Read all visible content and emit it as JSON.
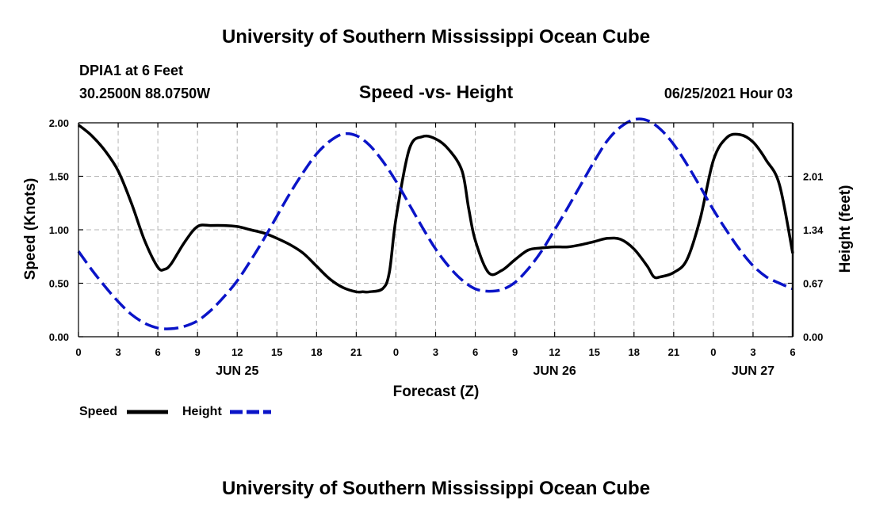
{
  "header": {
    "title_top": "University of Southern Mississippi Ocean Cube",
    "station": "DPIA1 at 6 Feet",
    "coords": "30.2500N  88.0750W",
    "datetime": "06/25/2021 Hour 03",
    "title_bottom": "University of Southern Mississippi Ocean Cube"
  },
  "legend": {
    "speed": "Speed",
    "height": "Height"
  },
  "colors": {
    "speed": "#000000",
    "height": "#0a14c8",
    "grid": "#b4b4b4"
  },
  "chart_data": {
    "type": "line",
    "title": "Speed -vs- Height",
    "xlabel": "Forecast (Z)",
    "ylabel": "Speed (Knots)",
    "y2label": "Height (feet)",
    "xlim": [
      0,
      54
    ],
    "ylim": [
      0,
      2.0
    ],
    "y2lim": [
      0,
      2.68
    ],
    "grid": true,
    "legend_position": "bottom-left",
    "x_ticks": [
      0,
      3,
      6,
      9,
      12,
      15,
      18,
      21,
      24,
      27,
      30,
      33,
      36,
      39,
      42,
      45,
      48,
      51,
      54
    ],
    "x_tick_labels": [
      "0",
      "3",
      "6",
      "9",
      "12",
      "15",
      "18",
      "21",
      "0",
      "3",
      "6",
      "9",
      "12",
      "15",
      "18",
      "21",
      "0",
      "3",
      "6"
    ],
    "y_ticks": [
      "0.00",
      "0.50",
      "1.00",
      "1.50",
      "2.00"
    ],
    "y2_ticks": [
      "0.00",
      "0.67",
      "1.34",
      "2.01"
    ],
    "date_labels": [
      {
        "label": "JUN 25",
        "x": 12
      },
      {
        "label": "JUN 26",
        "x": 36
      },
      {
        "label": "JUN 27",
        "x": 51
      }
    ],
    "series": [
      {
        "name": "Speed",
        "axis": "left",
        "x": [
          0,
          1,
          2,
          3,
          4,
          5,
          6,
          6.5,
          7,
          8,
          9,
          10,
          11,
          12,
          13,
          14,
          15,
          16,
          17,
          18,
          19,
          20,
          21,
          21.5,
          22,
          23,
          23.5,
          24,
          25,
          26,
          27,
          28,
          29,
          29.5,
          30,
          31,
          32,
          33,
          34,
          35,
          36,
          37,
          38,
          39,
          40,
          41,
          42,
          43,
          43.5,
          44,
          45,
          46,
          47,
          48,
          49,
          50,
          51,
          52,
          53,
          54
        ],
        "values": [
          1.98,
          1.88,
          1.74,
          1.55,
          1.25,
          0.9,
          0.65,
          0.63,
          0.68,
          0.88,
          1.03,
          1.04,
          1.04,
          1.03,
          1.0,
          0.97,
          0.92,
          0.86,
          0.78,
          0.66,
          0.54,
          0.46,
          0.42,
          0.42,
          0.42,
          0.45,
          0.6,
          1.1,
          1.75,
          1.87,
          1.85,
          1.75,
          1.55,
          1.2,
          0.9,
          0.6,
          0.62,
          0.72,
          0.81,
          0.83,
          0.84,
          0.84,
          0.86,
          0.89,
          0.92,
          0.91,
          0.82,
          0.66,
          0.56,
          0.56,
          0.6,
          0.72,
          1.1,
          1.65,
          1.86,
          1.89,
          1.82,
          1.65,
          1.42,
          0.78
        ]
      },
      {
        "name": "Height",
        "axis": "right",
        "x": [
          0,
          1,
          2,
          3,
          4,
          5,
          6,
          7,
          8,
          9,
          10,
          11,
          12,
          13,
          14,
          15,
          16,
          17,
          18,
          19,
          20,
          21,
          22,
          23,
          24,
          25,
          26,
          27,
          28,
          29,
          30,
          31,
          32,
          33,
          34,
          35,
          36,
          37,
          38,
          39,
          40,
          41,
          42,
          43,
          44,
          45,
          46,
          47,
          48,
          49,
          50,
          51,
          52,
          53,
          54
        ],
        "values": [
          1.07,
          0.84,
          0.63,
          0.44,
          0.28,
          0.17,
          0.11,
          0.1,
          0.13,
          0.2,
          0.33,
          0.5,
          0.7,
          0.95,
          1.22,
          1.51,
          1.8,
          2.06,
          2.29,
          2.45,
          2.54,
          2.52,
          2.4,
          2.2,
          1.95,
          1.66,
          1.37,
          1.1,
          0.88,
          0.71,
          0.6,
          0.57,
          0.59,
          0.68,
          0.85,
          1.07,
          1.34,
          1.62,
          1.91,
          2.2,
          2.46,
          2.63,
          2.72,
          2.71,
          2.6,
          2.41,
          2.16,
          1.88,
          1.59,
          1.33,
          1.09,
          0.89,
          0.75,
          0.67,
          0.6
        ]
      }
    ]
  }
}
